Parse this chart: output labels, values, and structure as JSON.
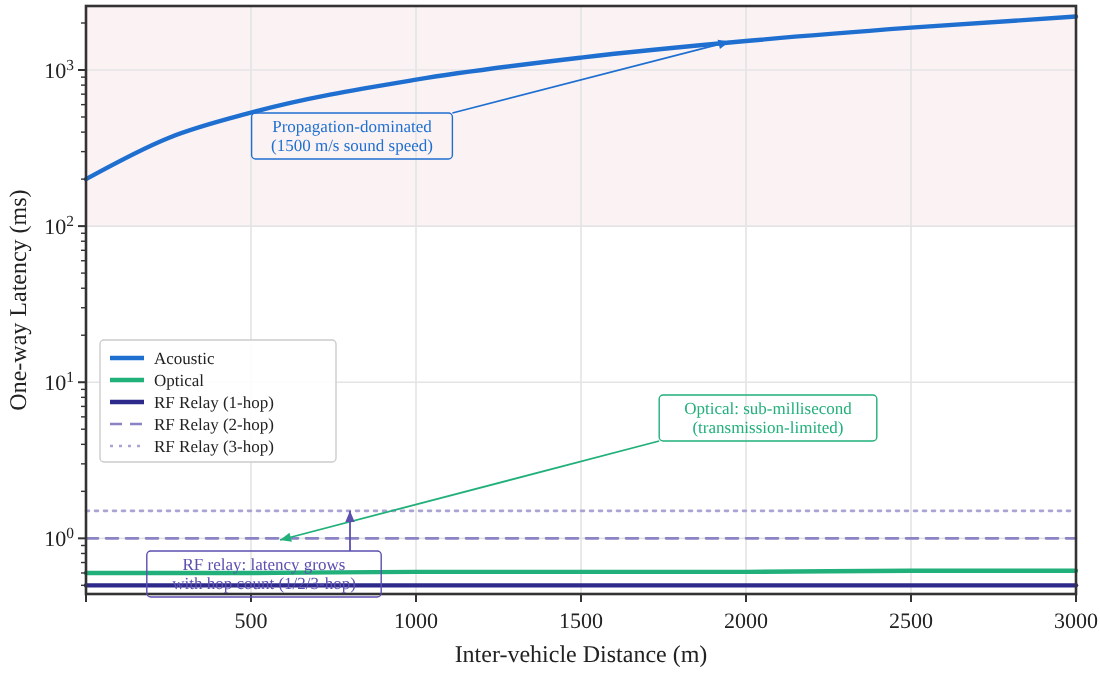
{
  "chart_data": {
    "type": "line",
    "xlabel": "Inter-vehicle Distance (m)",
    "ylabel": "One-way Latency (ms)",
    "x": [
      0,
      250,
      500,
      1000,
      1500,
      2000,
      2500,
      3000
    ],
    "xlim": [
      0,
      3000
    ],
    "xticks": [
      {
        "value": 0,
        "label": null
      },
      500,
      1000,
      1500,
      2000,
      2500,
      3000
    ],
    "ylim": [
      0.44,
      2570
    ],
    "log": "y",
    "yticks": [
      {
        "value": 1,
        "label": "10$^{0}$"
      },
      {
        "value": 10,
        "label": "10$^{1}$"
      },
      {
        "value": 100,
        "label": "10$^{2}$"
      },
      {
        "value": 1000,
        "label": "10$^{3}$"
      }
    ],
    "grid": true,
    "legend": "left",
    "series": [
      {
        "name": "Acoustic",
        "color": "#1f6fd1",
        "values": [
          200,
          367,
          533,
          867,
          1200,
          1533,
          1867,
          2200
        ]
      },
      {
        "name": "Optical",
        "color": "#21b07a",
        "values": [
          0.6,
          0.6,
          0.6,
          0.61,
          0.61,
          0.61,
          0.62,
          0.62
        ]
      },
      {
        "name": "RF Relay (1-hop)",
        "color": "#2e2a8c",
        "values": [
          0.5,
          0.5,
          0.5,
          0.5,
          0.5,
          0.5,
          0.5,
          0.5
        ]
      },
      {
        "name": "RF Relay (2-hop)",
        "color": "#8a84c4",
        "line_style": "dashed",
        "values": [
          1,
          1,
          1,
          1,
          1,
          1,
          1,
          1
        ]
      },
      {
        "name": "RF Relay (3-hop)",
        "color": "#a9a4d4",
        "line_style": "dotted",
        "values": [
          1.5,
          1.5,
          1.5,
          1.5,
          1.5,
          1.5,
          1.5,
          1.5
        ]
      }
    ],
    "bands": [
      {
        "axis": "y",
        "from": 100,
        "to": 2570,
        "color": "#fbf3f3"
      }
    ],
    "annotations": [
      {
        "text": "Propagation-dominated\n(1500 m/s sound speed)",
        "x": 1950,
        "y": 1520
      },
      "Optical: sub-millisecond\n(transmission-limited)",
      {
        "text": "RF relay: latency grows\nwith hop count (1/2/3-hop)",
        "x": 800,
        "y": 1.5
      }
    ]
  }
}
